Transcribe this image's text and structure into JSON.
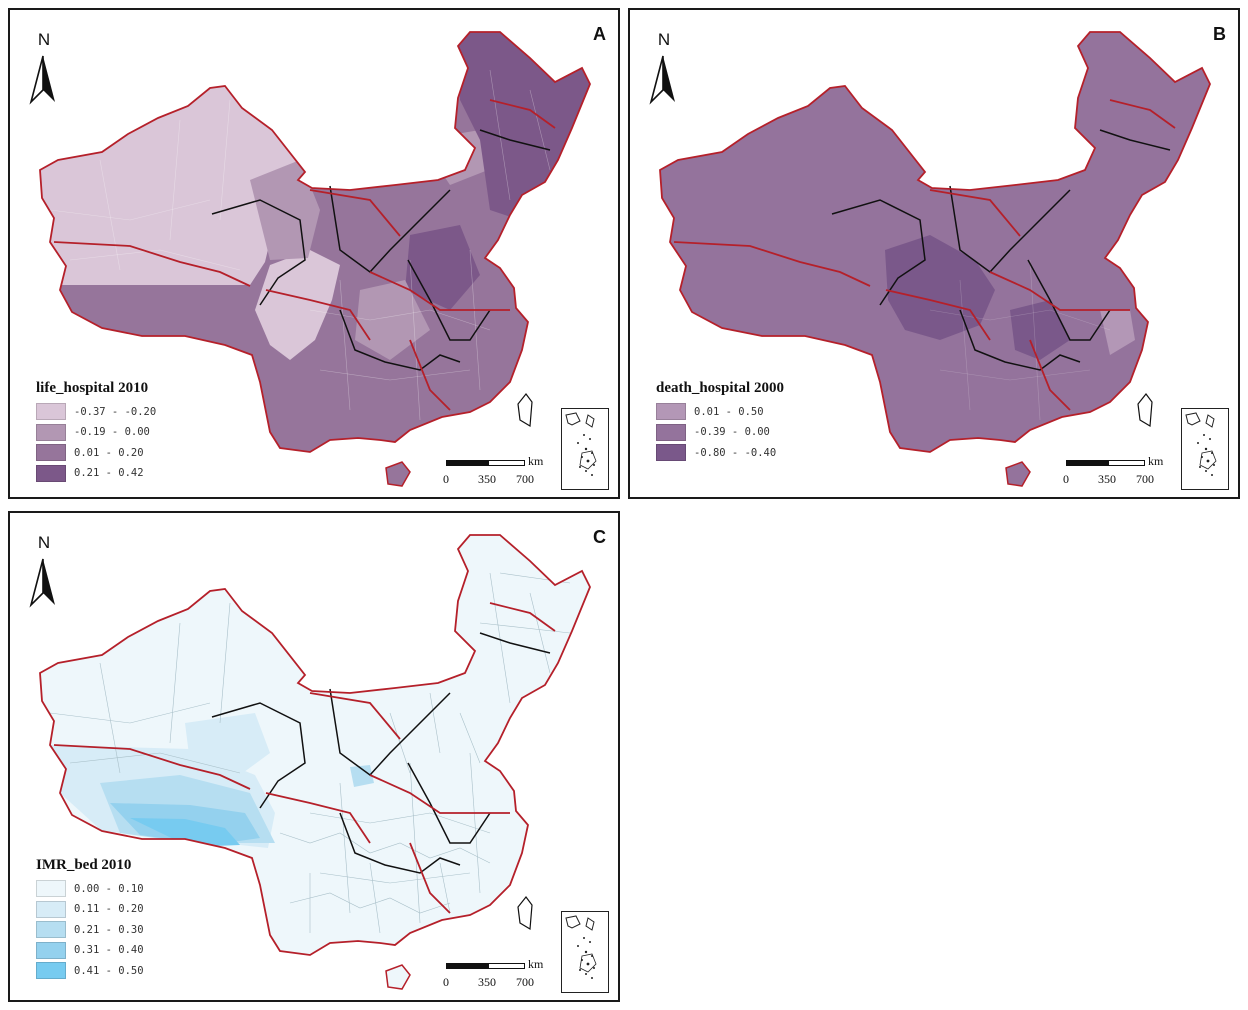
{
  "colors": {
    "province_border": "#b5202a",
    "region_border": "#111111",
    "county_line_a": "rgba(255,255,255,0.35)",
    "county_line_c": "#a9c0c9"
  },
  "north_arrow": {
    "letter": "N",
    "icon": "north-arrow-icon"
  },
  "scale_bar": {
    "unit": "km",
    "ticks": [
      "0",
      "350",
      "700"
    ]
  },
  "panels": [
    {
      "letter": "A",
      "legend": {
        "title": "life_hospital 2010",
        "items": [
          {
            "label": "-0.37 - -0.20",
            "color": "#dac6d8"
          },
          {
            "label": "-0.19 - 0.00",
            "color": "#b297b3"
          },
          {
            "label": "0.01 - 0.20",
            "color": "#96759b"
          },
          {
            "label": "0.21 - 0.42",
            "color": "#7c5889"
          }
        ]
      }
    },
    {
      "letter": "B",
      "legend": {
        "title": "death_hospital 2000",
        "items": [
          {
            "label": "0.01 - 0.50",
            "color": "#b397b6"
          },
          {
            "label": "-0.39 - 0.00",
            "color": "#94739c"
          },
          {
            "label": "-0.80 - -0.40",
            "color": "#7a588a"
          }
        ]
      }
    },
    {
      "letter": "C",
      "legend": {
        "title": "IMR_bed 2010",
        "items": [
          {
            "label": "0.00 - 0.10",
            "color": "#eef7fb"
          },
          {
            "label": "0.11 - 0.20",
            "color": "#d7ecf7"
          },
          {
            "label": "0.21 - 0.30",
            "color": "#b6def1"
          },
          {
            "label": "0.31 - 0.40",
            "color": "#94d1ee"
          },
          {
            "label": "0.41 - 0.50",
            "color": "#77cbf0"
          }
        ]
      }
    }
  ]
}
